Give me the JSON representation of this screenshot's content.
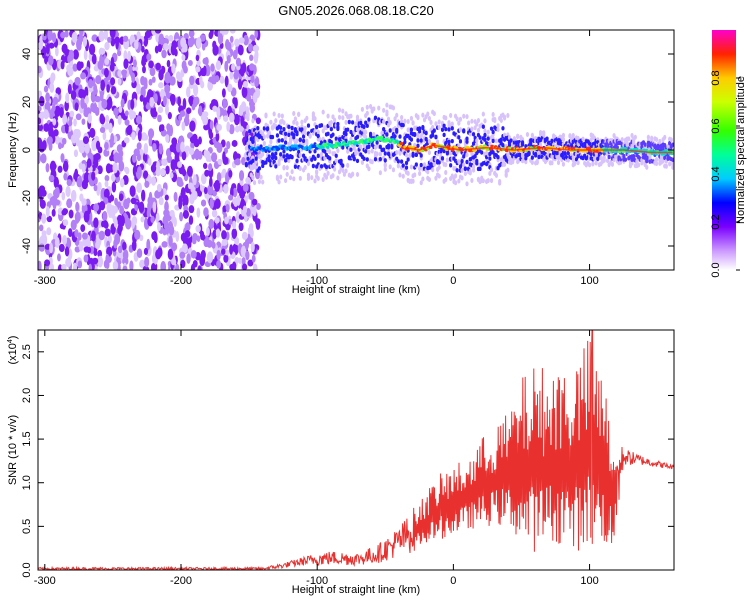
{
  "title": "GN05.2026.068.08.18.C20",
  "chart_data": [
    {
      "type": "heatmap",
      "xlabel": "Height of straight line (km)",
      "ylabel": "Frequency (Hz)",
      "xlim": [
        -305,
        162
      ],
      "ylim": [
        -50,
        50
      ],
      "xticks": [
        -300,
        -200,
        -100,
        0,
        100
      ],
      "xtick_labels": [
        "-300",
        "-200",
        "-100",
        "0",
        "100"
      ],
      "yticks": [
        -40,
        -20,
        0,
        20,
        40
      ],
      "ytick_labels": [
        "-40",
        "-20",
        "0",
        "20",
        "40"
      ],
      "colorbar": {
        "label": "Normalized spectral amplitude",
        "range": [
          0,
          1
        ],
        "ticks": [
          0.0,
          0.2,
          0.4,
          0.6,
          0.8
        ],
        "tick_labels": [
          "0.0",
          "0.2",
          "0.4",
          "0.6",
          "0.8"
        ]
      },
      "ridge": {
        "description": "dominant frequency vs height",
        "x": [
          -150,
          -130,
          -110,
          -90,
          -70,
          -55,
          -45,
          -35,
          -25,
          -15,
          -5,
          5,
          25,
          45,
          65,
          85,
          105,
          125,
          145,
          162
        ],
        "y": [
          0,
          1,
          1,
          2,
          3,
          5,
          4,
          1,
          0,
          2,
          1,
          0,
          1,
          0,
          1,
          0,
          0,
          0,
          -1,
          -1
        ]
      }
    },
    {
      "type": "line",
      "xlabel": "Height of straight line (km)",
      "ylabel": "SNR (10 * v/v)",
      "ylabel_multiplier": "(x10",
      "ylabel_multiplier_exp": "4",
      "ylabel_multiplier_close": ")",
      "xlim": [
        -305,
        162
      ],
      "ylim": [
        0,
        2.75
      ],
      "xticks": [
        -300,
        -200,
        -100,
        0,
        100
      ],
      "xtick_labels": [
        "-300",
        "-200",
        "-100",
        "0",
        "100"
      ],
      "yticks": [
        0.0,
        0.5,
        1.0,
        1.5,
        2.0,
        2.5
      ],
      "ytick_labels": [
        "0.0",
        "0.5",
        "1.0",
        "1.5",
        "2.0",
        "2.5"
      ],
      "series": [
        {
          "name": "SNR",
          "color": "#e8312f",
          "envelope": {
            "x": [
              -305,
              -200,
              -140,
              -125,
              -110,
              -100,
              -90,
              -70,
              -55,
              -40,
              -30,
              -20,
              -10,
              0,
              10,
              20,
              30,
              40,
              50,
              60,
              70,
              80,
              90,
              100,
              110,
              118,
              125,
              140,
              162
            ],
            "y_low": [
              0.0,
              0.0,
              0.0,
              0.02,
              0.05,
              0.05,
              0.06,
              0.05,
              0.08,
              0.15,
              0.2,
              0.3,
              0.35,
              0.4,
              0.45,
              0.5,
              0.5,
              0.5,
              0.3,
              0.2,
              0.3,
              0.3,
              0.2,
              0.3,
              0.3,
              0.2,
              1.2,
              1.2,
              1.15
            ],
            "y_high": [
              0.03,
              0.03,
              0.03,
              0.08,
              0.15,
              0.2,
              0.22,
              0.2,
              0.3,
              0.5,
              0.7,
              0.9,
              1.1,
              1.2,
              1.3,
              1.5,
              1.7,
              1.8,
              2.2,
              2.4,
              2.3,
              2.4,
              2.4,
              2.7,
              2.2,
              1.6,
              1.4,
              1.3,
              1.2
            ]
          },
          "peak": {
            "x": 102,
            "y": 2.75
          }
        }
      ]
    }
  ]
}
